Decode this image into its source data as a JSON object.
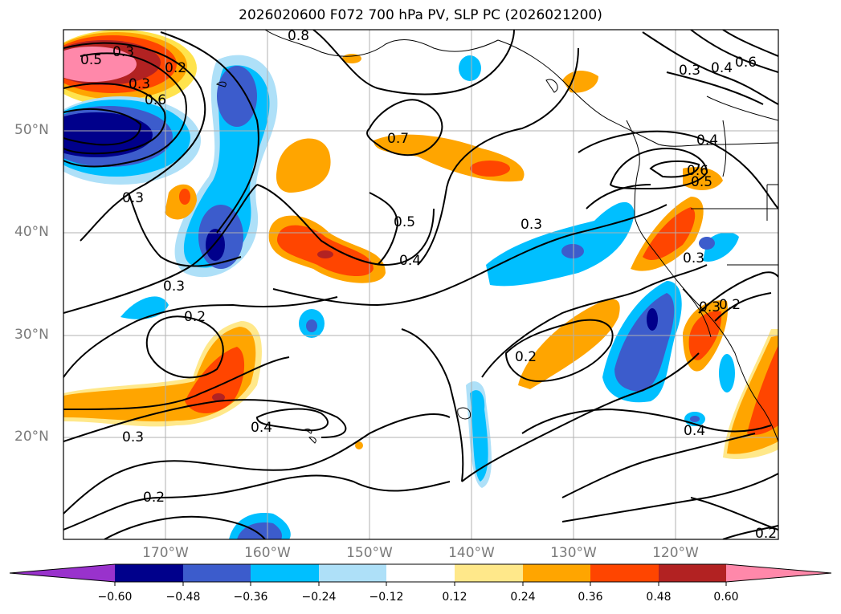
{
  "title": "2026020600 F072 700 hPa PV, SLP PC (2026021200)",
  "lat_labels": [
    "50°N",
    "40°N",
    "30°N",
    "20°N"
  ],
  "lon_labels": [
    "170°W",
    "160°W",
    "150°W",
    "140°W",
    "130°W",
    "120°W"
  ],
  "colorbar": {
    "ticks": [
      "−0.60",
      "−0.48",
      "−0.36",
      "−0.24",
      "−0.12",
      "0.12",
      "0.24",
      "0.36",
      "0.48",
      "0.60"
    ],
    "colors": [
      "#9932cc",
      "#00008b",
      "#3c5ccc",
      "#00bfff",
      "#aee0f8",
      "#ffffff",
      "#ffe88a",
      "#ffa500",
      "#ff4500",
      "#b22222",
      "#ff88aa"
    ]
  },
  "contour_labels": [
    "0.3",
    "0.5",
    "0.2",
    "0.4",
    "0.3",
    "0.2",
    "0.7",
    "0.5",
    "0.4",
    "0.3",
    "0.3",
    "0.3",
    "0.2",
    "0.4",
    "0.2",
    "0.4",
    "0.3",
    "0.6",
    "0.5",
    "0.3",
    "0.2",
    "0.4",
    "0.6",
    "0.2",
    "0.3",
    "0.3",
    "0.6",
    "0.8"
  ],
  "colors": {
    "land": "#000000",
    "grid": "#b0b0b0",
    "contour": "#000000"
  }
}
